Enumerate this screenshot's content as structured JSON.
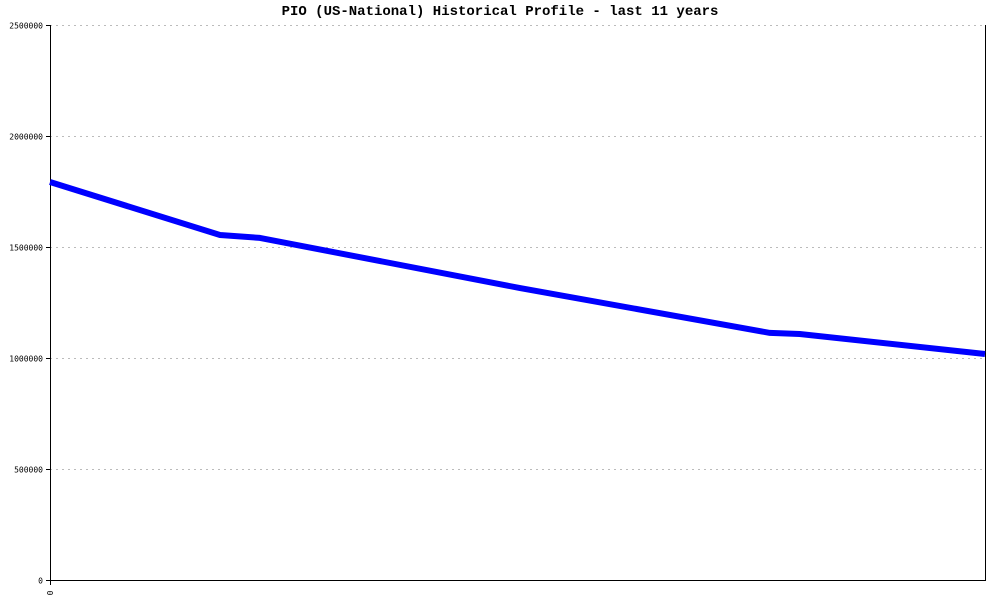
{
  "chart_data": {
    "type": "line",
    "title": "PIO (US-National) Historical Profile - last 11 years",
    "xlabel": "",
    "ylabel": "",
    "x_tick_labels": [
      "0"
    ],
    "y_tick_labels": [
      "0",
      "500000",
      "1000000",
      "1500000",
      "2000000",
      "2500000"
    ],
    "y_ticks": [
      0,
      500000,
      1000000,
      1500000,
      2000000,
      2500000
    ],
    "xlim": [
      0,
      11
    ],
    "ylim": [
      0,
      2500000
    ],
    "grid": true,
    "series": [
      {
        "color": "#0000ff",
        "x": [
          0,
          2.0,
          2.47,
          5.53,
          8.47,
          8.82,
          11
        ],
        "y": [
          1793000,
          1554000,
          1541000,
          1315000,
          1113000,
          1108000,
          1018000
        ]
      }
    ]
  }
}
